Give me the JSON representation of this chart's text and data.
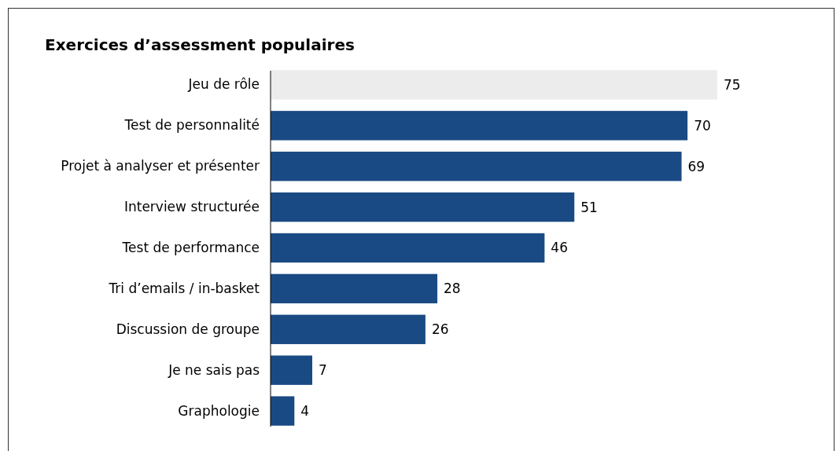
{
  "chart_data": {
    "type": "bar",
    "orientation": "horizontal",
    "title": "Exercices d’assessment populaires",
    "categories": [
      "Jeu de rôle",
      "Test de personnalité",
      "Projet à analyser et présenter",
      "Interview structurée",
      "Test de performance",
      "Tri d’emails / in-basket",
      "Discussion de groupe",
      "Je ne sais pas",
      "Graphologie"
    ],
    "values": [
      75,
      70,
      69,
      51,
      46,
      28,
      26,
      7,
      4
    ],
    "colors": [
      "#ececec",
      "#1a4a83",
      "#1a4a83",
      "#1a4a83",
      "#1a4a83",
      "#1a4a83",
      "#1a4a83",
      "#1a4a83",
      "#1a4a83"
    ],
    "data_labels": true
  }
}
